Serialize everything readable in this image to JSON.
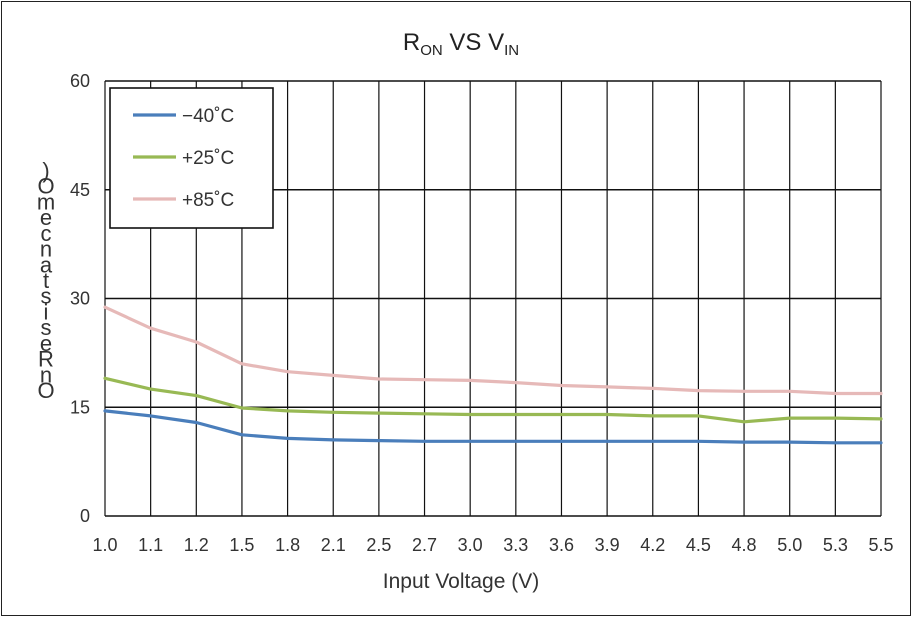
{
  "chart_data": {
    "type": "line",
    "title": {
      "main": "R",
      "main_sub": "ON",
      "middle": " VS V",
      "middle_sub": "IN"
    },
    "xlabel": "Input Voltage (V)",
    "ylabel_glyphs": [
      ")",
      "O",
      "m",
      "e",
      "c",
      "n",
      "a",
      "t",
      "s",
      "i",
      "s",
      "e",
      "R",
      "n",
      "O"
    ],
    "categories": [
      "1.0",
      "1.1",
      "1.2",
      "1.5",
      "1.8",
      "2.1",
      "2.5",
      "2.7",
      "3.0",
      "3.3",
      "3.6",
      "3.9",
      "4.2",
      "4.5",
      "4.8",
      "5.0",
      "5.3",
      "5.5"
    ],
    "ylim": [
      0,
      60
    ],
    "yticks": [
      "0",
      "15",
      "30",
      "45",
      "60"
    ],
    "grid": true,
    "legend_position": "top-left",
    "series": [
      {
        "name": "−40˚C",
        "color": "#4a7ebb",
        "values": [
          14.5,
          13.8,
          12.9,
          11.2,
          10.7,
          10.5,
          10.4,
          10.3,
          10.3,
          10.3,
          10.3,
          10.3,
          10.3,
          10.3,
          10.2,
          10.2,
          10.1,
          10.1
        ]
      },
      {
        "name": "+25˚C",
        "color": "#98b954",
        "values": [
          19.0,
          17.5,
          16.6,
          14.9,
          14.5,
          14.3,
          14.2,
          14.1,
          14.0,
          14.0,
          14.0,
          14.0,
          13.8,
          13.8,
          13.0,
          13.5,
          13.5,
          13.4
        ]
      },
      {
        "name": "+85˚C",
        "color": "#e6b9b8",
        "values": [
          28.8,
          25.9,
          24.0,
          21.0,
          19.9,
          19.4,
          18.9,
          18.8,
          18.7,
          18.4,
          18.0,
          17.8,
          17.6,
          17.3,
          17.2,
          17.2,
          16.9,
          16.9
        ]
      }
    ]
  }
}
